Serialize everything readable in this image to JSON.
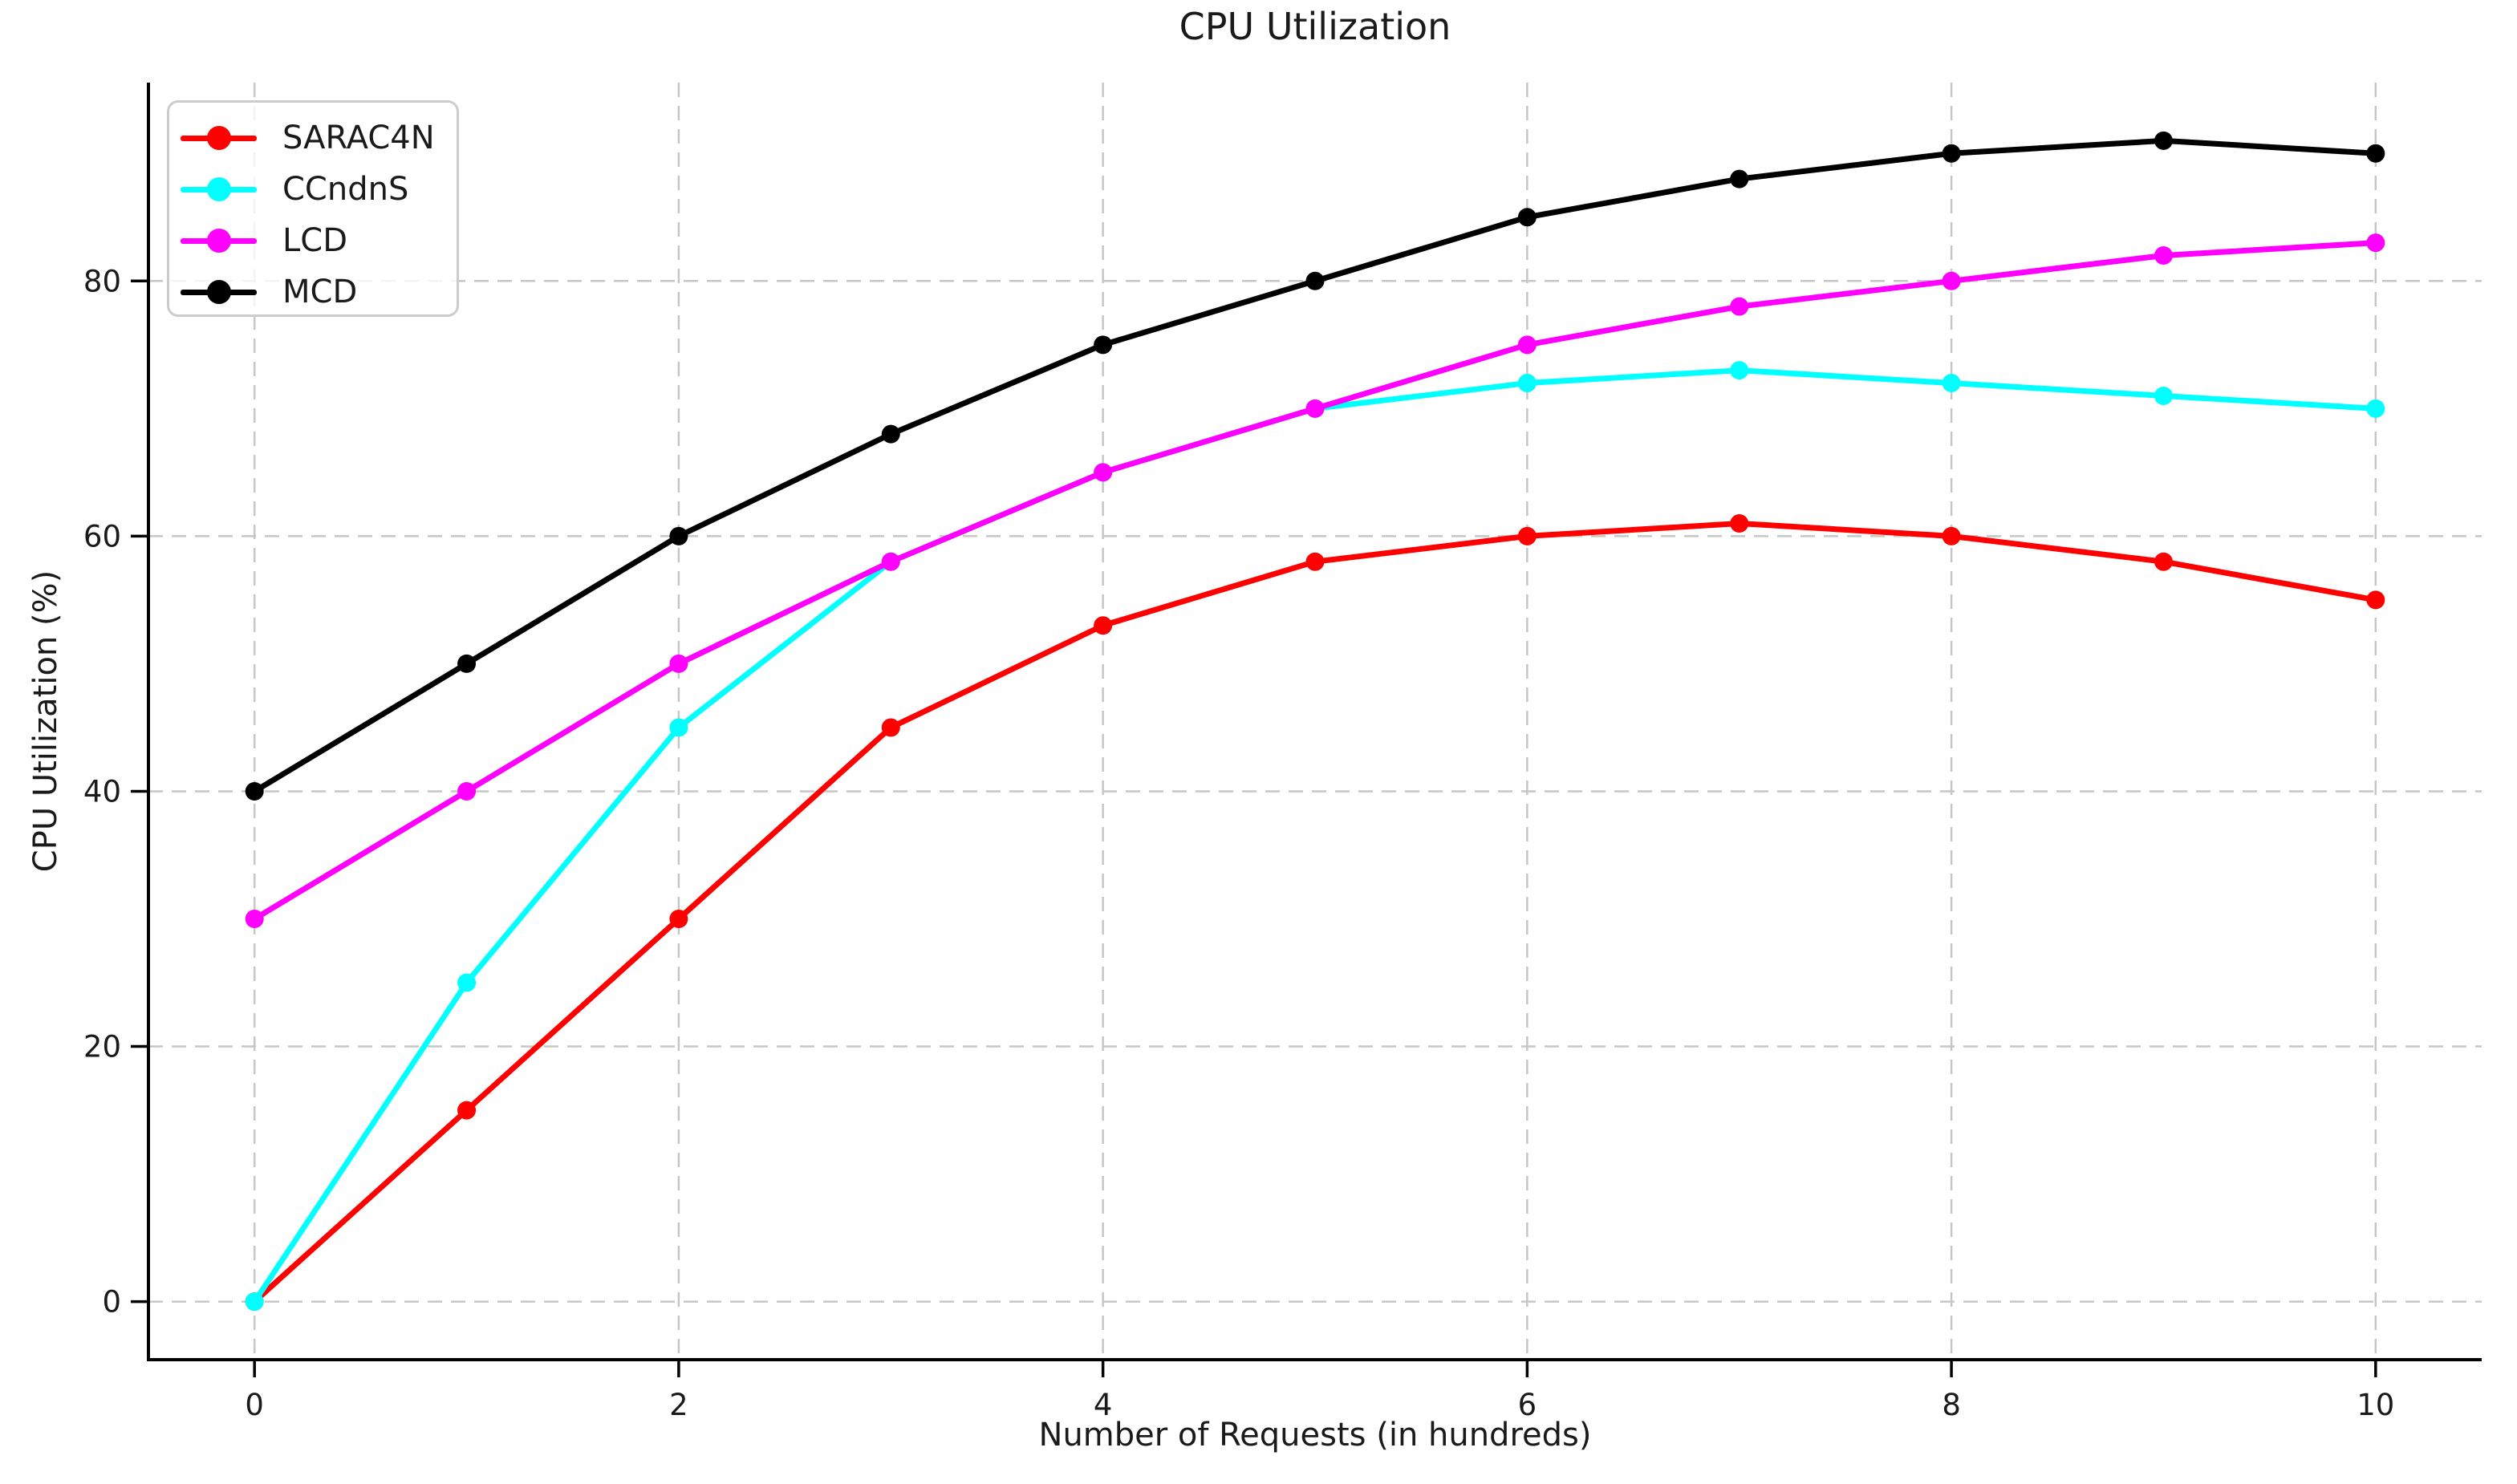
{
  "page": {
    "background": "#ffffff"
  },
  "style": {
    "grid_color": "#c6c6c6",
    "spine_color": "#000000",
    "tick_color": "#000000",
    "text_color": "#1a1a1a",
    "legend_border_color": "#cccccc"
  },
  "chart_data": {
    "type": "line",
    "title": "CPU Utilization",
    "xlabel": "Number of Requests (in hundreds)",
    "ylabel": "CPU Utilization (%)",
    "x": [
      0,
      1,
      2,
      3,
      4,
      5,
      6,
      7,
      8,
      9,
      10
    ],
    "x_ticks": [
      0,
      2,
      4,
      6,
      8,
      10
    ],
    "y_ticks": [
      0,
      20,
      40,
      60,
      80
    ],
    "xlim": [
      -0.5,
      10.5
    ],
    "ylim": [
      -4.55,
      95.55
    ],
    "grid": true,
    "grid_style": "dashed",
    "legend_position": "upper-left",
    "series": [
      {
        "name": "SARAC4N",
        "color": "#ff0000",
        "values": [
          0,
          15,
          30,
          45,
          53,
          58,
          60,
          61,
          60,
          58,
          55
        ]
      },
      {
        "name": "CCndnS",
        "color": "#00ffff",
        "values": [
          0,
          25,
          45,
          58,
          65,
          70,
          72,
          73,
          72,
          71,
          70
        ]
      },
      {
        "name": "LCD",
        "color": "#ff00ff",
        "values": [
          30,
          40,
          50,
          58,
          65,
          70,
          75,
          78,
          80,
          82,
          83
        ]
      },
      {
        "name": "MCD",
        "color": "#000000",
        "values": [
          40,
          50,
          60,
          68,
          75,
          80,
          85,
          88,
          90,
          91,
          90
        ]
      }
    ]
  }
}
